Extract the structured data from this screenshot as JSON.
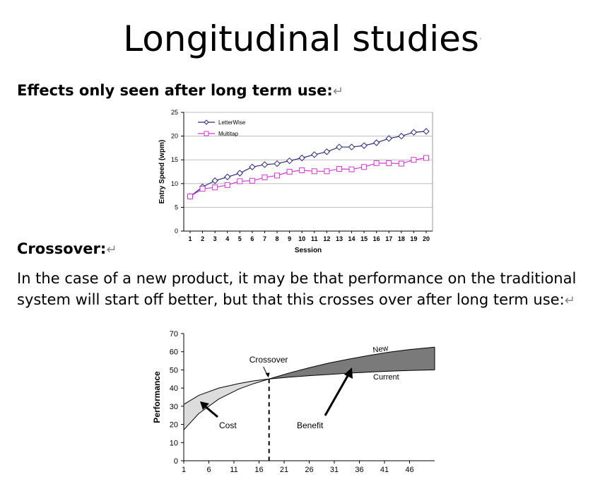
{
  "slide": {
    "title": "Longitudinal studies",
    "title_mark": "·",
    "heading1": "Effects only seen after long term use:",
    "heading2": "Crossover:",
    "return_mark": "↵",
    "paragraph": "In the case of a new product, it may be that performance on the traditional system will start off better, but that this crosses over after long term use:"
  },
  "chart_data": [
    {
      "type": "line",
      "title": "",
      "xlabel": "Session",
      "ylabel": "Entry Speed (wpm)",
      "x": [
        1,
        2,
        3,
        4,
        5,
        6,
        7,
        8,
        9,
        10,
        11,
        12,
        13,
        14,
        15,
        16,
        17,
        18,
        19,
        20
      ],
      "ylim": [
        0,
        25
      ],
      "yticks": [
        0,
        5,
        10,
        15,
        20,
        25
      ],
      "grid": true,
      "legend": "top-left",
      "series": [
        {
          "name": "LetterWise",
          "color": "#2b2b7a",
          "marker": "diamond",
          "values": [
            7.3,
            9.3,
            10.6,
            11.4,
            12.2,
            13.5,
            14.0,
            14.2,
            14.8,
            15.4,
            16.1,
            16.7,
            17.7,
            17.7,
            18.0,
            18.6,
            19.5,
            20.0,
            20.8,
            21.0
          ]
        },
        {
          "name": "Multitap",
          "color": "#d437d0",
          "marker": "square",
          "values": [
            7.3,
            8.9,
            9.2,
            9.7,
            10.5,
            10.6,
            11.3,
            11.7,
            12.5,
            12.8,
            12.6,
            12.6,
            13.1,
            13.0,
            13.5,
            14.3,
            14.3,
            14.2,
            15.0,
            15.4
          ]
        }
      ]
    },
    {
      "type": "area",
      "title": "",
      "xlabel": "",
      "ylabel": "Performance",
      "xticks": [
        1,
        6,
        11,
        16,
        21,
        26,
        31,
        36,
        41,
        46
      ],
      "xlim": [
        1,
        51
      ],
      "ylim": [
        0,
        70
      ],
      "yticks": [
        0,
        10,
        20,
        30,
        40,
        50,
        60,
        70
      ],
      "grid": false,
      "series": [
        {
          "name": "New",
          "x": [
            1,
            4,
            8,
            12,
            15,
            18,
            22,
            26,
            30,
            34,
            38,
            42,
            46,
            51
          ],
          "values": [
            17,
            26,
            34,
            39.5,
            42.5,
            45,
            48.3,
            51.2,
            53.8,
            56,
            58,
            59.8,
            61.2,
            62.5
          ]
        },
        {
          "name": "Current",
          "x": [
            1,
            4,
            8,
            12,
            15,
            18,
            22,
            26,
            30,
            34,
            38,
            42,
            46,
            51
          ],
          "values": [
            31,
            36,
            40,
            42.5,
            44,
            45,
            46,
            46.8,
            47.5,
            48.2,
            48.8,
            49.3,
            49.7,
            50
          ]
        }
      ],
      "crossover_x": 18,
      "annotations": [
        "Crossover",
        "Cost",
        "Benefit",
        "New",
        "Current"
      ]
    }
  ]
}
